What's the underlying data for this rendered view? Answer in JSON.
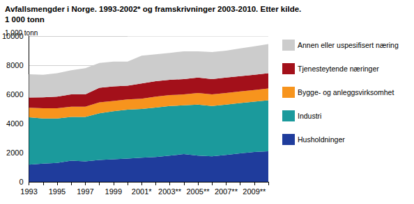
{
  "chart_data": {
    "type": "area",
    "title": "Avfallsmengder i Norge. 1993-2002* og framskrivninger 2003-2010. Etter kilde.",
    "subtitle": "1 000 tonn",
    "y_label": "1 000 tonn",
    "categories": [
      "1993",
      null,
      "1995",
      null,
      "1997",
      null,
      "1999",
      null,
      "2001*",
      null,
      "2003**",
      null,
      "2005**",
      null,
      "2007**",
      null,
      "2009**",
      null
    ],
    "series": [
      {
        "name": "Husholdninger",
        "color": "#1f3c9c",
        "values": [
          1180,
          1250,
          1300,
          1450,
          1400,
          1500,
          1550,
          1600,
          1650,
          1700,
          1800,
          1900,
          1800,
          1750,
          1850,
          1950,
          2050,
          2100
        ]
      },
      {
        "name": "Industri",
        "color": "#1b9a9c",
        "values": [
          3250,
          3100,
          3050,
          3000,
          3050,
          3200,
          3300,
          3350,
          3350,
          3400,
          3400,
          3350,
          3500,
          3450,
          3450,
          3450,
          3450,
          3500
        ]
      },
      {
        "name": "Bygge- og anleggsvirksomhet",
        "color": "#f7941d",
        "values": [
          650,
          700,
          700,
          700,
          700,
          750,
          700,
          700,
          700,
          750,
          750,
          750,
          800,
          800,
          800,
          800,
          800,
          800
        ]
      },
      {
        "name": "Tjenesteytende næringer",
        "color": "#a3101a",
        "values": [
          700,
          750,
          800,
          850,
          850,
          1000,
          1000,
          950,
          1050,
          1050,
          1050,
          1050,
          1050,
          1050,
          1050,
          1050,
          1050,
          1050
        ]
      },
      {
        "name": "Annen eller uspesifisert næring",
        "color": "#cccccc",
        "values": [
          1600,
          1550,
          1600,
          1650,
          1800,
          1700,
          1700,
          1650,
          1900,
          1850,
          1850,
          1900,
          1800,
          1850,
          1850,
          1900,
          1950,
          2000
        ]
      }
    ],
    "ylim": [
      0,
      10000
    ],
    "yticks": [
      0,
      2000,
      4000,
      6000,
      8000,
      10000
    ],
    "stacked": true,
    "grid": true,
    "legend": "right"
  }
}
